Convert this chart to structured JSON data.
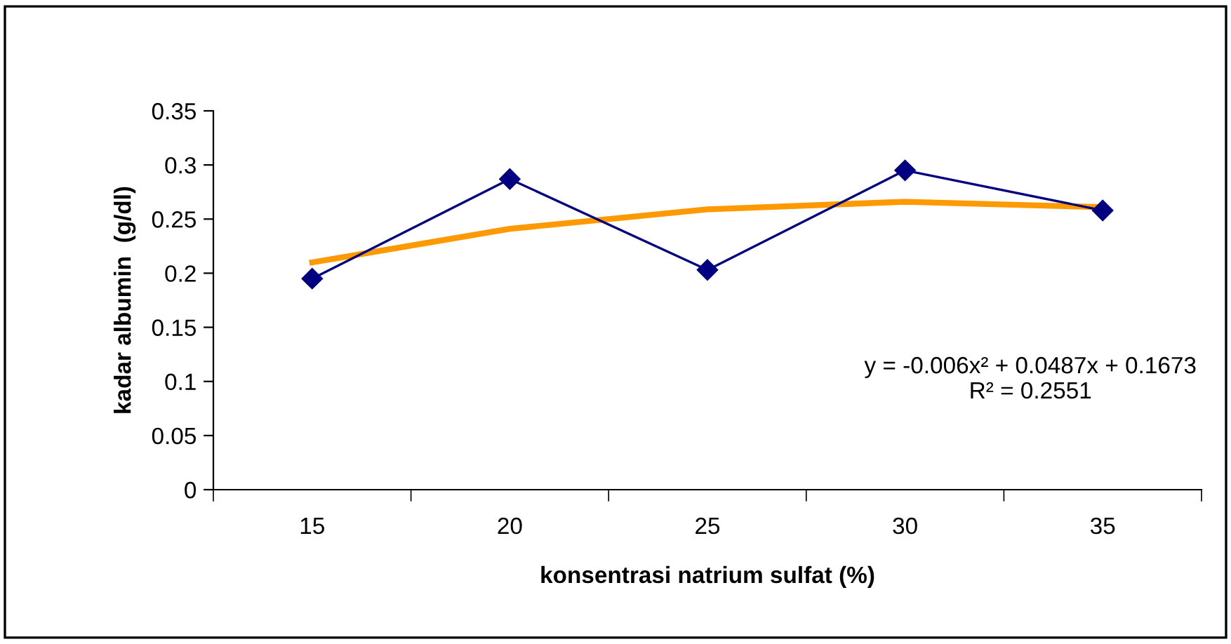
{
  "chart_data": {
    "type": "line",
    "xlabel": "konsentrasi natrium sulfat (%)",
    "ylabel": "kadar albumin  (g/dl)",
    "categories": [
      "15",
      "20",
      "25",
      "30",
      "35"
    ],
    "series": [
      {
        "color": "#000080",
        "values": [
          0.195,
          0.287,
          0.203,
          0.295,
          0.258
        ],
        "marker": "diamond"
      },
      {
        "type": "line",
        "color": "#ff9900",
        "values": [
          0.21,
          0.241,
          0.259,
          0.266,
          0.261
        ],
        "marker": "none"
      }
    ],
    "ylim": [
      0,
      0.35
    ],
    "yticks": [
      0,
      0.05,
      0.1,
      0.15,
      0.2,
      0.25,
      0.3,
      0.35
    ],
    "grid": false,
    "legend": false,
    "annotations": [
      "y = -0.006x² + 0.0487x + 0.1673\nR² = 0.2551"
    ]
  }
}
